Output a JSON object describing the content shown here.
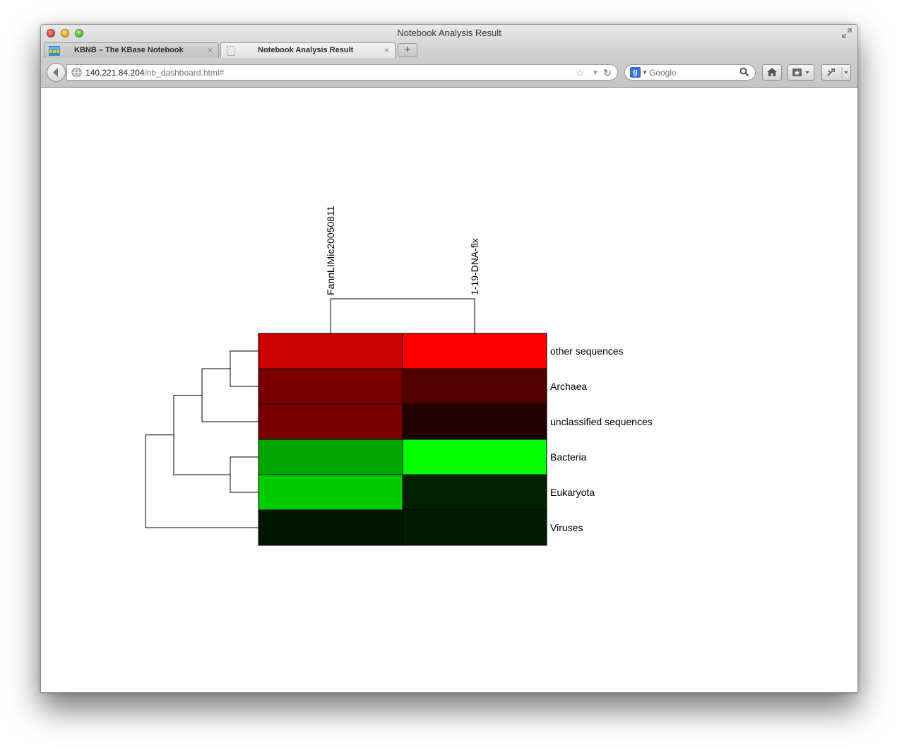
{
  "window": {
    "title": "Notebook Analysis Result"
  },
  "tabs": [
    {
      "label": "KBNB – The KBase Notebook",
      "close": "×",
      "active": false
    },
    {
      "label": "Notebook Analysis Result",
      "close": "×",
      "active": true
    }
  ],
  "new_tab": "+",
  "address": {
    "host": "140.221.84.204",
    "path": "/nb_dashboard.html#"
  },
  "search": {
    "placeholder": "Google"
  },
  "toolbar_icons": [
    "back-icon",
    "globe-icon",
    "bookmark-star-icon",
    "history-dropdown-icon",
    "reload-icon",
    "google-search-engine-icon",
    "search-icon",
    "home-icon",
    "bookmarks-icon",
    "tools-icon"
  ],
  "chart_data": {
    "type": "heatmap",
    "columns": [
      "FannLIMic20050811",
      "1-19-DNA-flx"
    ],
    "rows": [
      "other sequences",
      "Archaea",
      "unclassified sequences",
      "Bacteria",
      "Eukaryota",
      "Viruses"
    ],
    "cell_colors": [
      [
        "#cc0000",
        "#ff0000"
      ],
      [
        "#7a0000",
        "#520000"
      ],
      [
        "#7a0000",
        "#220000"
      ],
      [
        "#00a600",
        "#00ff00"
      ],
      [
        "#00cc00",
        "#002000"
      ],
      [
        "#001800",
        "#001c00"
      ]
    ],
    "color_scale": {
      "low": "#000000",
      "high_positive": "#ff0000",
      "high_negative": "#00ff00"
    },
    "column_dendrogram": "FannLIMic20050811 and 1-19-DNA-flx joined",
    "row_dendrogram": "((((other sequences, Archaea), unclassified sequences), (Bacteria, Eukaryota)), Viruses)"
  }
}
